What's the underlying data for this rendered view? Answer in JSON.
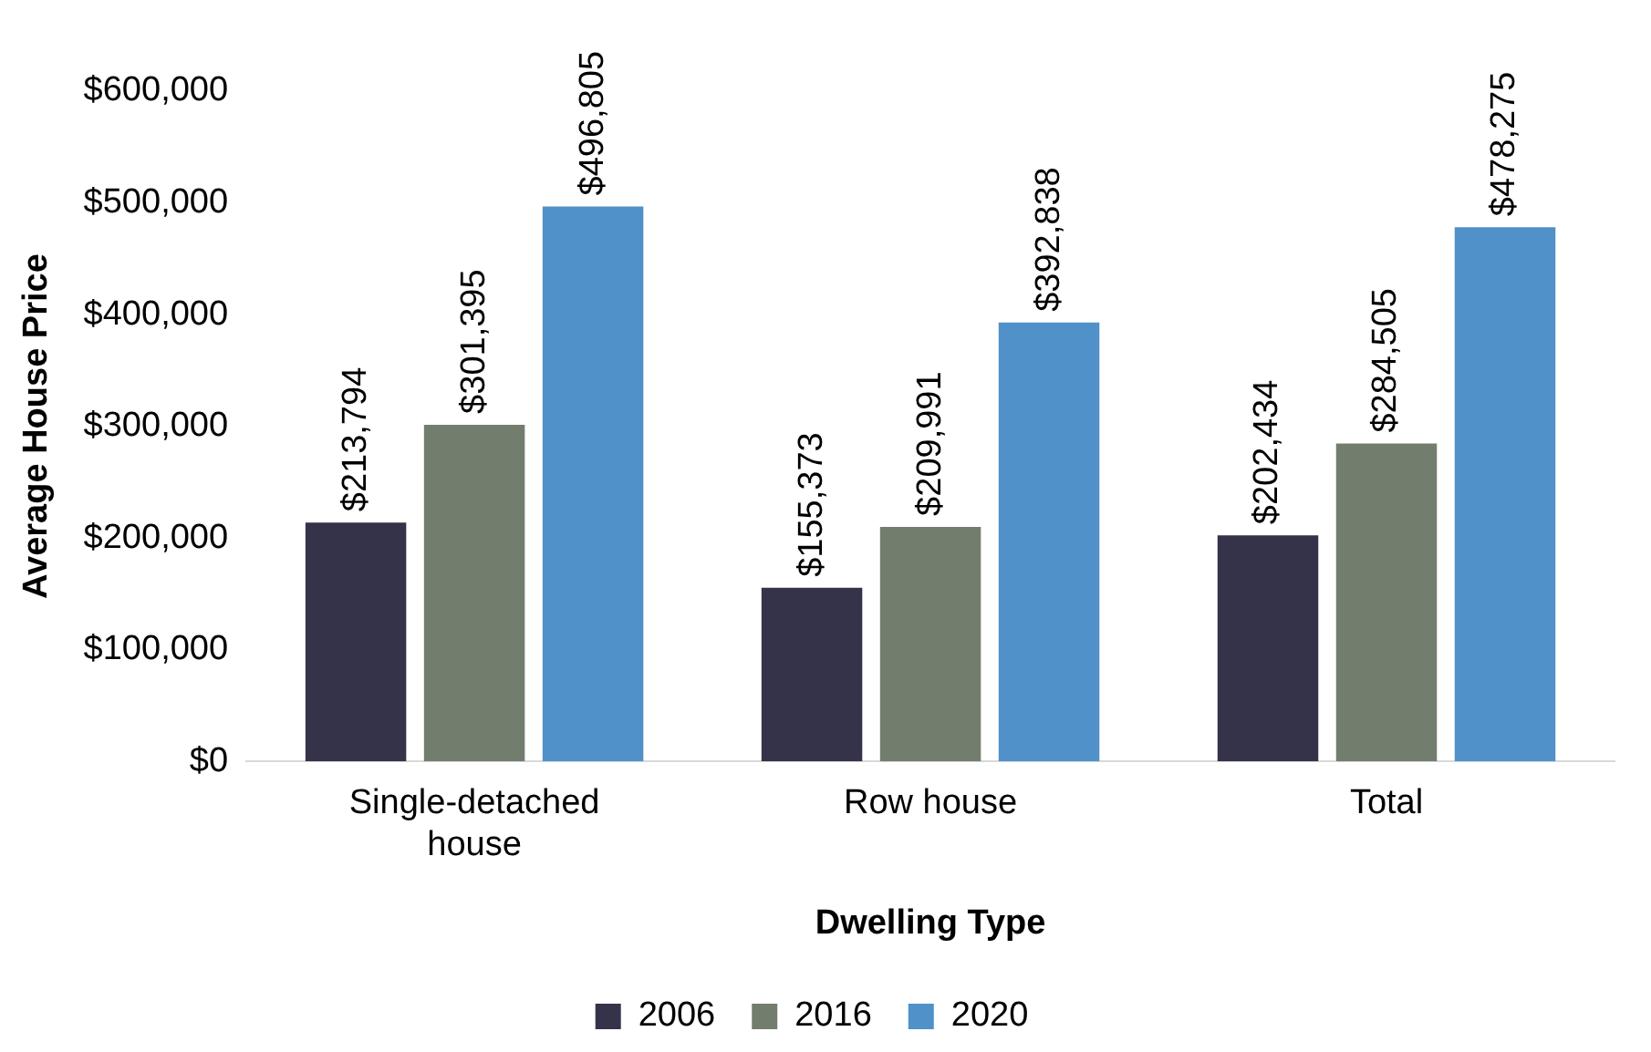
{
  "chart_data": {
    "type": "bar",
    "xlabel": "Dwelling Type",
    "ylabel": "Average House Price",
    "categories": [
      "Single-detached house",
      "Row house",
      "Total"
    ],
    "series": [
      {
        "name": "2006",
        "color": "#35334a",
        "values": [
          213794,
          155373,
          202434
        ],
        "value_labels": [
          "$213,794",
          "$155,373",
          "$202,434"
        ]
      },
      {
        "name": "2016",
        "color": "#737d6e",
        "values": [
          301395,
          209991,
          284505
        ],
        "value_labels": [
          "$301,395",
          "$209,991",
          "$284,505"
        ]
      },
      {
        "name": "2020",
        "color": "#4f91c8",
        "values": [
          496805,
          392838,
          478275
        ],
        "value_labels": [
          "$496,805",
          "$392,838",
          "$478,275"
        ]
      }
    ],
    "ylim": [
      0,
      600000
    ],
    "yticks": [
      {
        "value": 0,
        "label": "$0"
      },
      {
        "value": 100000,
        "label": "$100,000"
      },
      {
        "value": 200000,
        "label": "$200,000"
      },
      {
        "value": 300000,
        "label": "$300,000"
      },
      {
        "value": 400000,
        "label": "$400,000"
      },
      {
        "value": 500000,
        "label": "$500,000"
      },
      {
        "value": 600000,
        "label": "$600,000"
      }
    ],
    "grid": false,
    "legend": "bottom"
  }
}
